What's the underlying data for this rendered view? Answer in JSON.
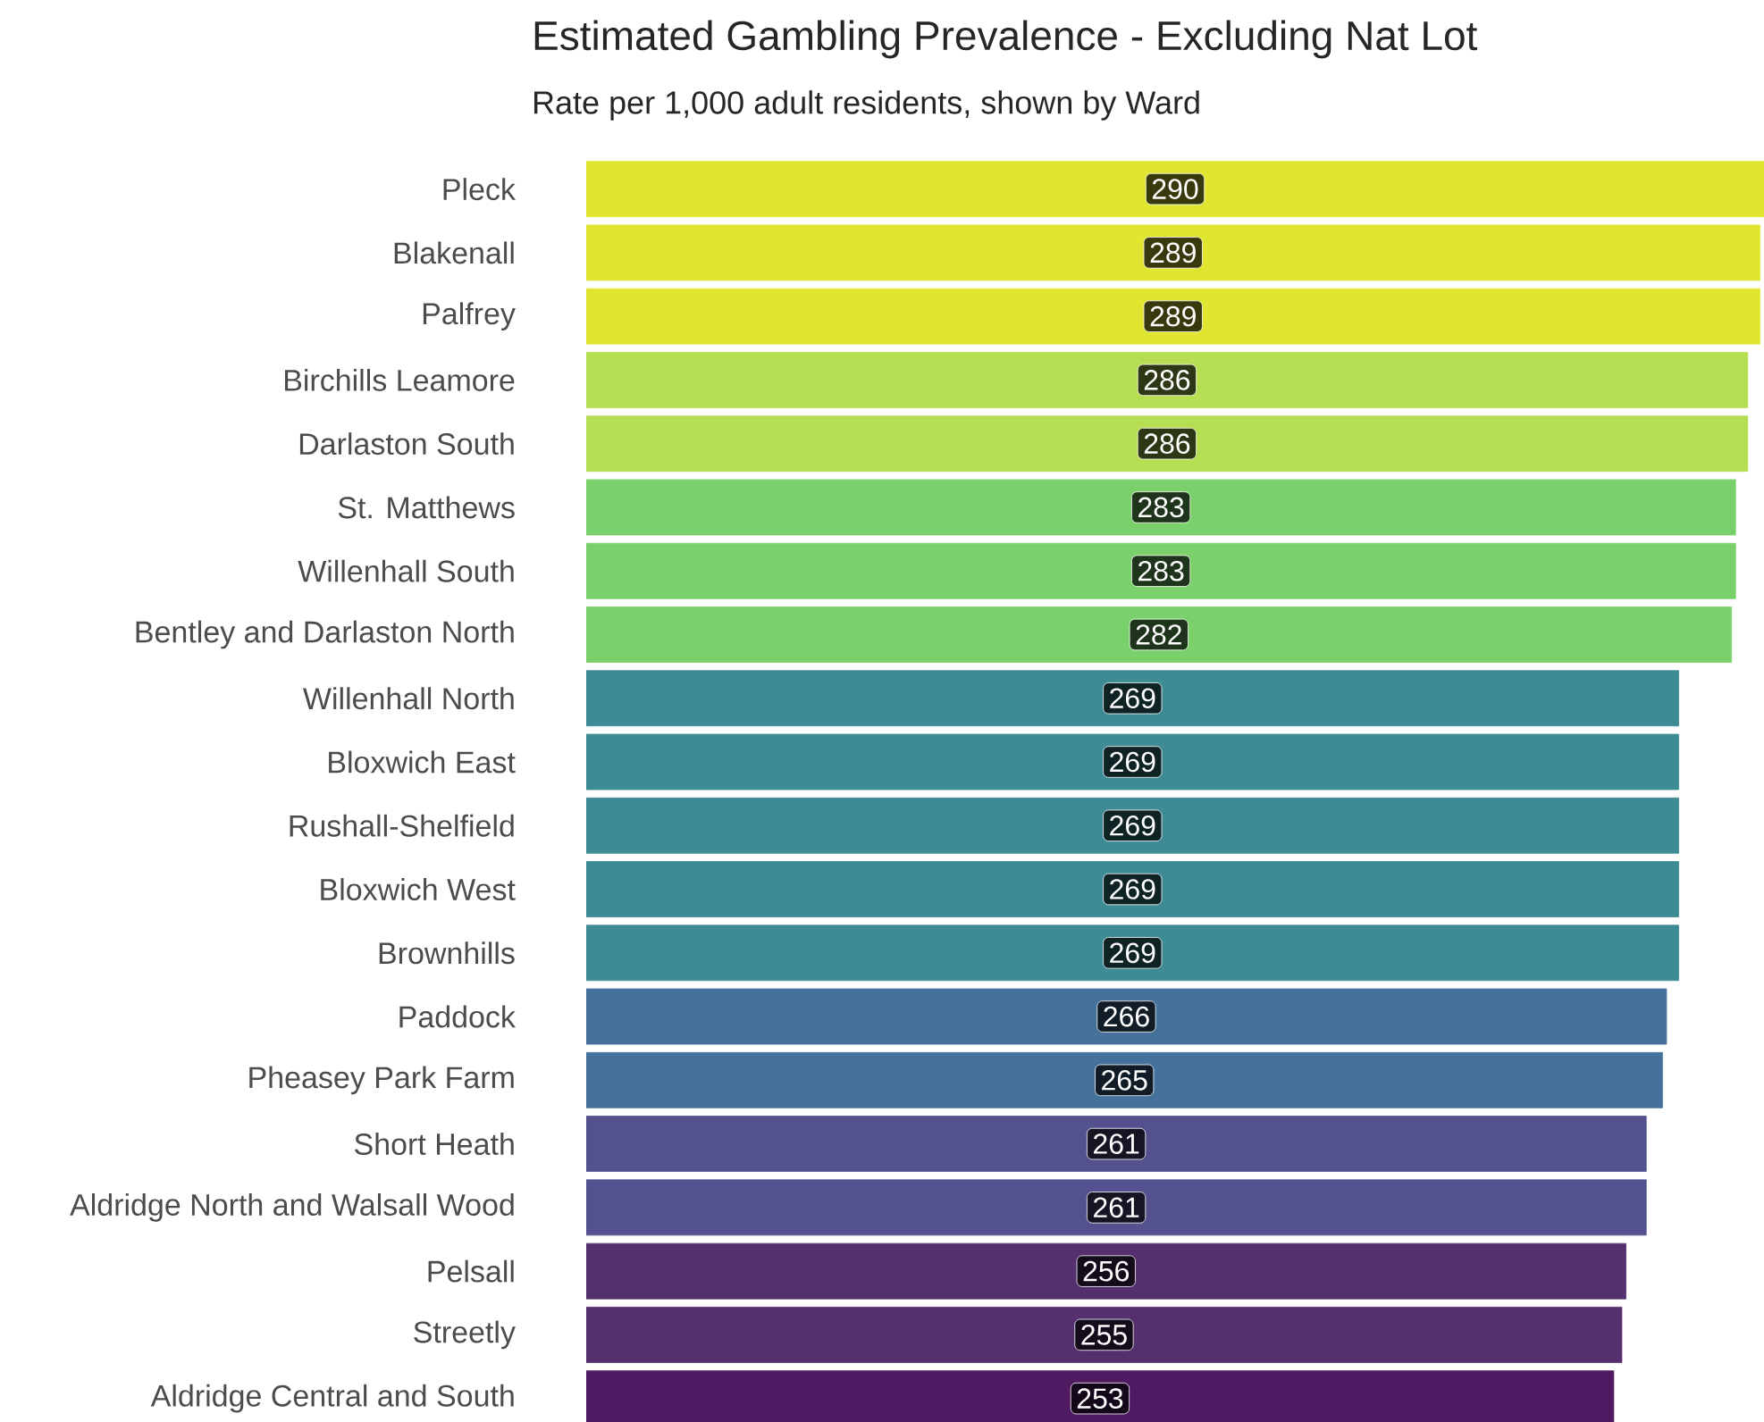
{
  "chart_data": {
    "type": "bar",
    "orientation": "horizontal",
    "title": "Estimated Gambling Prevalence - Excluding Nat Lot",
    "subtitle": "Rate per 1,000 adult residents, shown by Ward",
    "categories": [
      "Pleck",
      "Blakenall",
      "Palfrey",
      "Birchills Leamore",
      "Darlaston South",
      "St. Matthews",
      "Willenhall South",
      "Bentley and Darlaston North",
      "Willenhall North",
      "Bloxwich East",
      "Rushall-Shelfield",
      "Bloxwich West",
      "Brownhills",
      "Paddock",
      "Pheasey Park Farm",
      "Short Heath",
      "Aldridge North and Walsall Wood",
      "Pelsall",
      "Streetly",
      "Aldridge Central and South"
    ],
    "values": [
      290,
      289,
      289,
      286,
      286,
      283,
      283,
      282,
      269,
      269,
      269,
      269,
      269,
      266,
      265,
      261,
      261,
      256,
      255,
      253
    ],
    "colors": [
      "#e0e52f",
      "#e0e52f",
      "#e0e52f",
      "#b5de52",
      "#b5de52",
      "#7ad06a",
      "#7ad06a",
      "#7ad06a",
      "#3e8b96",
      "#3e8b96",
      "#3e8b96",
      "#3e8b96",
      "#3e8b96",
      "#45729a",
      "#45729a",
      "#53528f",
      "#53528f",
      "#55306e",
      "#55306e",
      "#501a63"
    ],
    "data_labels": true
  }
}
